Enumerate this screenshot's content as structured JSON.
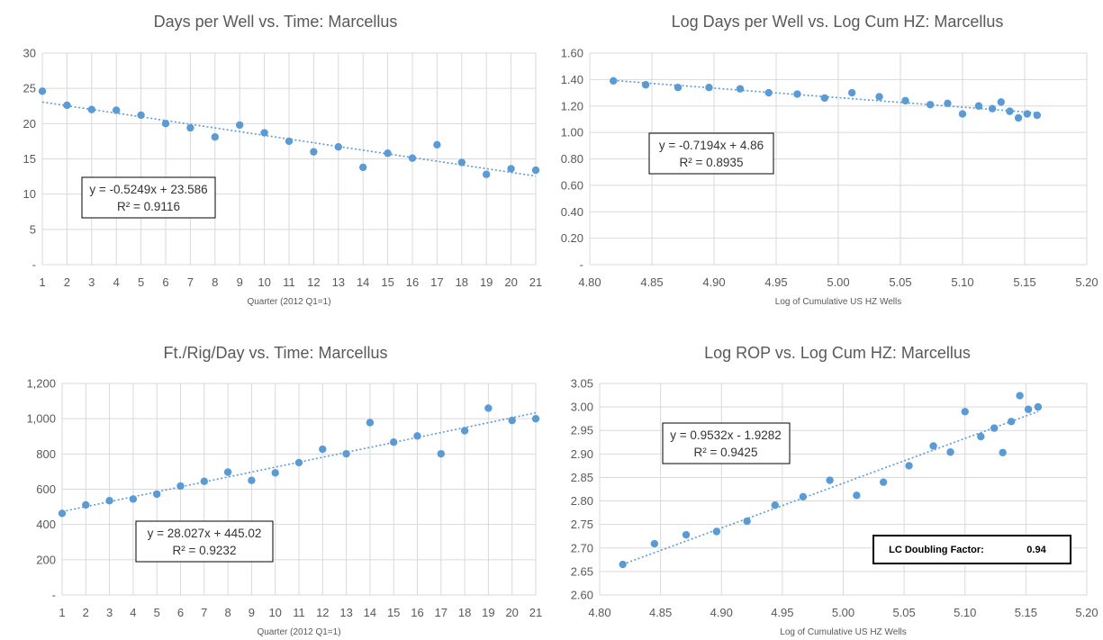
{
  "colors": {
    "marker": "#5B9BD5",
    "trend": "#5B9BD5",
    "grid": "#D9D9D9",
    "text": "#595959",
    "box": "#000000"
  },
  "chart_data": [
    {
      "type": "scatter",
      "title": "Days per Well vs. Time: Marcellus",
      "xlabel": "Quarter (2012 Q1=1)",
      "ylabel": "",
      "xlim": [
        1,
        21
      ],
      "ylim": [
        0,
        30
      ],
      "grid": true,
      "x_ticks": [
        "1",
        "2",
        "3",
        "4",
        "5",
        "6",
        "7",
        "8",
        "9",
        "10",
        "11",
        "12",
        "13",
        "14",
        "15",
        "16",
        "17",
        "18",
        "19",
        "20",
        "21"
      ],
      "y_ticks": [
        "-",
        "5",
        "10",
        "15",
        "20",
        "25",
        "30"
      ],
      "series": [
        {
          "x": [
            1,
            2,
            3,
            4,
            5,
            6,
            7,
            8,
            9,
            10,
            11,
            12,
            13,
            14,
            15,
            16,
            17,
            18,
            19,
            20,
            21
          ],
          "y": [
            24.6,
            22.6,
            22.0,
            21.9,
            21.2,
            20.0,
            19.4,
            18.1,
            19.8,
            18.7,
            17.5,
            16.0,
            16.7,
            13.8,
            15.8,
            15.1,
            17.0,
            14.5,
            12.8,
            13.6,
            13.4
          ]
        }
      ],
      "trendline": {
        "slope": -0.5249,
        "intercept": 23.586,
        "x_range": [
          1,
          21
        ]
      },
      "equation": [
        "y = -0.5249x + 23.586",
        "R² = 0.9116"
      ]
    },
    {
      "type": "scatter",
      "title": "Log Days per Well vs. Log Cum HZ: Marcellus",
      "xlabel": "Log of Cumulative US HZ Wells",
      "ylabel": "",
      "xlim": [
        4.8,
        5.2
      ],
      "ylim": [
        0,
        1.6
      ],
      "grid": true,
      "x_ticks": [
        "4.80",
        "4.85",
        "4.90",
        "4.95",
        "5.00",
        "5.05",
        "5.10",
        "5.15",
        "5.20"
      ],
      "y_ticks": [
        "-",
        "0.20",
        "0.40",
        "0.60",
        "0.80",
        "1.00",
        "1.20",
        "1.40",
        "1.60"
      ],
      "series": [
        {
          "x": [
            4.819,
            4.845,
            4.871,
            4.896,
            4.921,
            4.944,
            4.967,
            4.989,
            5.011,
            5.033,
            5.054,
            5.074,
            5.088,
            5.1,
            5.113,
            5.124,
            5.131,
            5.138,
            5.145,
            5.152,
            5.16
          ],
          "y": [
            1.39,
            1.36,
            1.34,
            1.34,
            1.33,
            1.3,
            1.29,
            1.26,
            1.3,
            1.27,
            1.24,
            1.21,
            1.22,
            1.14,
            1.2,
            1.18,
            1.23,
            1.16,
            1.11,
            1.14,
            1.13
          ]
        }
      ],
      "trendline": {
        "slope": -0.7194,
        "intercept": 4.86,
        "x_range": [
          4.819,
          5.16
        ]
      },
      "equation": [
        "y = -0.7194x + 4.86",
        "R² = 0.8935"
      ]
    },
    {
      "type": "scatter",
      "title": "Ft./Rig/Day vs. Time: Marcellus",
      "xlabel": "Quarter (2012 Q1=1)",
      "ylabel": "",
      "xlim": [
        1,
        21
      ],
      "ylim": [
        0,
        1200
      ],
      "grid": true,
      "x_ticks": [
        "1",
        "2",
        "3",
        "4",
        "5",
        "6",
        "7",
        "8",
        "9",
        "10",
        "11",
        "12",
        "13",
        "14",
        "15",
        "16",
        "17",
        "18",
        "19",
        "20",
        "21"
      ],
      "y_ticks": [
        "-",
        "200",
        "400",
        "600",
        "800",
        "1,000",
        "1,200"
      ],
      "series": [
        {
          "x": [
            1,
            2,
            3,
            4,
            5,
            6,
            7,
            8,
            9,
            10,
            11,
            12,
            13,
            14,
            15,
            16,
            17,
            18,
            19,
            20,
            21
          ],
          "y": [
            463,
            511,
            535,
            544,
            572,
            618,
            645,
            697,
            650,
            693,
            751,
            827,
            801,
            978,
            867,
            902,
            801,
            932,
            1060,
            990,
            1000
          ]
        }
      ],
      "trendline": {
        "slope": 28.027,
        "intercept": 445.02,
        "x_range": [
          1,
          21
        ]
      },
      "equation": [
        "y = 28.027x + 445.02",
        "R² = 0.9232"
      ]
    },
    {
      "type": "scatter",
      "title": "Log ROP vs. Log Cum HZ: Marcellus",
      "xlabel": "Log of Cumulative US HZ Wells",
      "ylabel": "",
      "xlim": [
        4.8,
        5.2
      ],
      "ylim": [
        2.6,
        3.05
      ],
      "grid": true,
      "x_ticks": [
        "4.80",
        "4.85",
        "4.90",
        "4.95",
        "5.00",
        "5.05",
        "5.10",
        "5.15",
        "5.20"
      ],
      "y_ticks": [
        "2.60",
        "2.65",
        "2.70",
        "2.75",
        "2.80",
        "2.85",
        "2.90",
        "2.95",
        "3.00",
        "3.05"
      ],
      "series": [
        {
          "x": [
            4.819,
            4.845,
            4.871,
            4.896,
            4.921,
            4.944,
            4.967,
            4.989,
            5.011,
            5.033,
            5.054,
            5.074,
            5.088,
            5.1,
            5.113,
            5.124,
            5.131,
            5.138,
            5.145,
            5.152,
            5.16
          ],
          "y": [
            2.665,
            2.709,
            2.728,
            2.735,
            2.757,
            2.791,
            2.809,
            2.844,
            2.812,
            2.84,
            2.875,
            2.917,
            2.904,
            2.99,
            2.937,
            2.955,
            2.903,
            2.969,
            3.024,
            2.995,
            3.0
          ]
        }
      ],
      "trendline": {
        "slope": 0.9532,
        "intercept": -1.9282,
        "x_range": [
          4.819,
          5.16
        ]
      },
      "equation": [
        "y = 0.9532x - 1.9282",
        "R² = 0.9425"
      ],
      "lc_label": "LC Doubling Factor:",
      "lc_value": "0.94"
    }
  ]
}
